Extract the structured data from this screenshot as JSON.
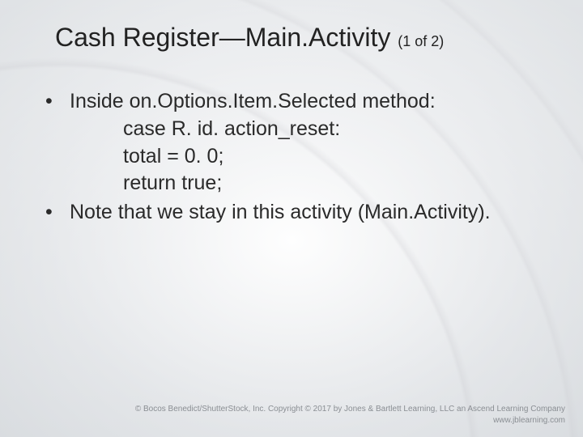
{
  "slide": {
    "title_main": "Cash Register—Main.Activity",
    "pager": "(1 of 2)",
    "title_fontsize": 32,
    "pager_fontsize": 18,
    "body_fontsize": 25,
    "text_color": "#2a2a2a",
    "background_gradient": [
      "#f5f6f7",
      "#e8eaec",
      "#dfe2e5"
    ],
    "bullets": [
      {
        "text": "Inside on.Options.Item.Selected method:",
        "code": [
          "case R. id. action_reset:",
          "total = 0. 0;",
          "return true;"
        ]
      },
      {
        "text": "Note that we stay in this activity (Main.Activity)."
      }
    ]
  },
  "footer": {
    "line1": "© Bocos Benedict/ShutterStock, Inc. Copyright © 2017 by Jones & Bartlett Learning, LLC an Ascend Learning Company",
    "line2": "www.jblearning.com",
    "fontsize": 10,
    "color": "#8a8e93"
  }
}
